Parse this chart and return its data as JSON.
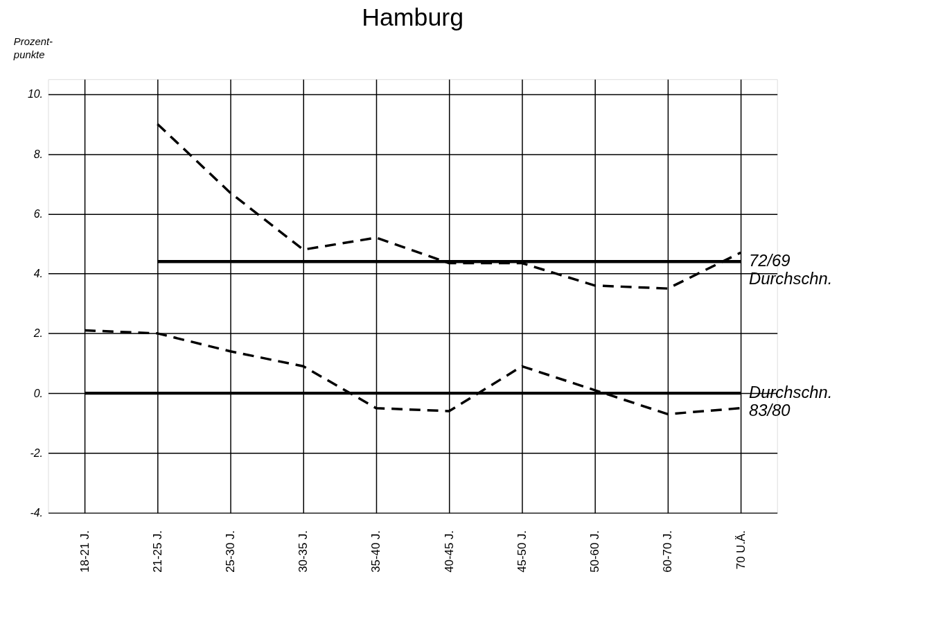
{
  "chart_data": {
    "type": "line",
    "title": "Hamburg",
    "ylabel": "Prozent-punkte",
    "categories": [
      "18-21 J.",
      "21-25 J.",
      "25-30 J.",
      "30-35 J.",
      "35-40 J.",
      "40-45 J.",
      "45-50 J.",
      "50-60 J.",
      "60-70 J.",
      "70 U.Ä."
    ],
    "series": [
      {
        "color": "#000000",
        "line_style": "dashed",
        "values": [
          null,
          9.0,
          6.7,
          4.8,
          5.2,
          4.35,
          4.35,
          3.6,
          3.5,
          4.7
        ]
      },
      {
        "color": "#000000",
        "line_style": "solid",
        "values": [
          null,
          4.4,
          4.4,
          4.4,
          4.4,
          4.4,
          4.4,
          4.4,
          4.4,
          4.4
        ]
      },
      {
        "color": "#000000",
        "line_style": "dashed",
        "values": [
          2.1,
          2.0,
          1.4,
          0.9,
          -0.5,
          -0.6,
          0.9,
          0.1,
          -0.7,
          -0.5
        ]
      },
      {
        "color": "#000000",
        "line_style": "solid",
        "values": [
          0,
          0,
          0,
          0,
          0,
          0,
          0,
          0,
          0,
          0
        ]
      }
    ],
    "ylim": [
      -4,
      10.5
    ],
    "yticks": [
      {
        "value": -4,
        "label": "-4."
      },
      {
        "value": -2,
        "label": "-2."
      },
      {
        "value": 0,
        "label": "0."
      },
      {
        "value": 2,
        "label": "2."
      },
      {
        "value": 4,
        "label": "4."
      },
      {
        "value": 6,
        "label": "6."
      },
      {
        "value": 8,
        "label": "8."
      },
      {
        "value": 10,
        "label": "10."
      }
    ],
    "grid": true,
    "marker": "none",
    "annotations": [
      {
        "text": "72/69 Durchschn.",
        "x": "70 U.Ä.",
        "y": 4.4
      },
      {
        "text": "Durchschn. 83/80",
        "x": "70 U.Ä.",
        "y": 0
      }
    ]
  }
}
